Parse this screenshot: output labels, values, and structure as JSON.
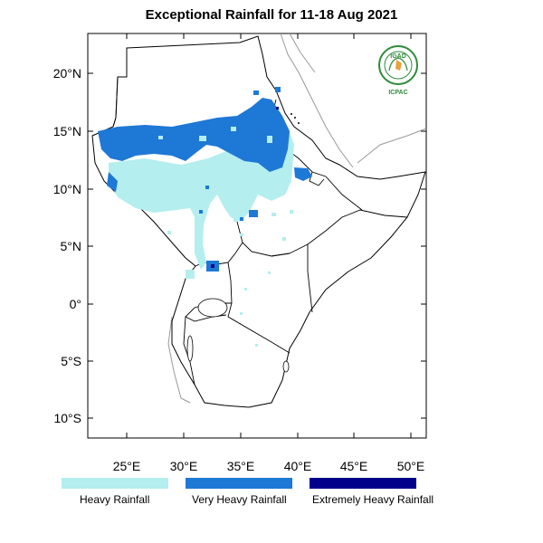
{
  "title": "Exceptional Rainfall for 11-18 Aug 2021",
  "axes": {
    "lat_ticks": [
      "20°N",
      "15°N",
      "10°N",
      "5°N",
      "0°",
      "5°S",
      "10°S"
    ],
    "lon_ticks": [
      "25°E",
      "30°E",
      "35°E",
      "40°E",
      "45°E",
      "50°E"
    ]
  },
  "legend": [
    {
      "label": "Heavy Rainfall",
      "color": "#b4eeee"
    },
    {
      "label": "Very Heavy Rainfall",
      "color": "#1e78d6"
    },
    {
      "label": "Extremely Heavy Rainfall",
      "color": "#00008b"
    }
  ],
  "logo": {
    "top_text": "IGAD",
    "bottom_text": "ICPAC",
    "color": "#2e8b3a"
  }
}
